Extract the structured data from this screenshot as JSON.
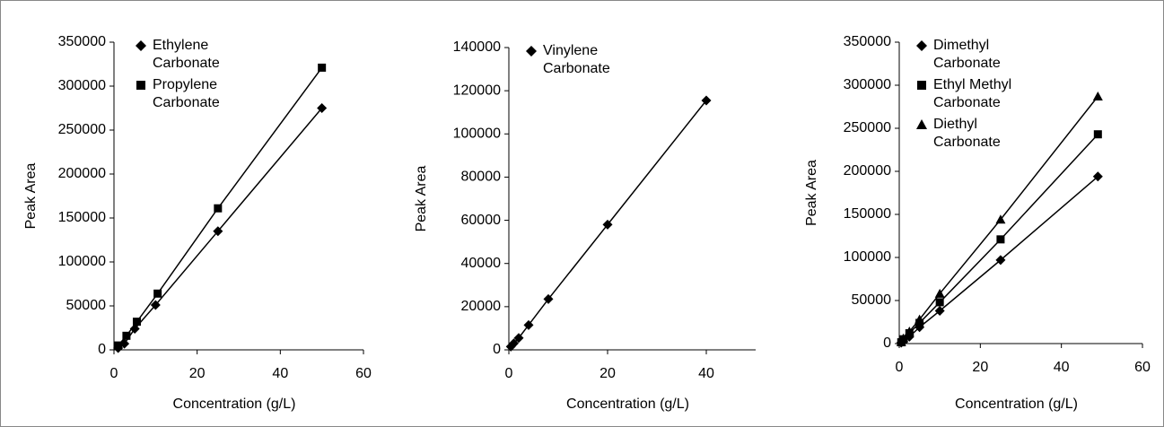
{
  "chart_data": [
    {
      "type": "line",
      "x_label": "Concentration (g/L)",
      "y_label": "Peak Area",
      "xlim": [
        0,
        60
      ],
      "xticks": [
        0,
        20,
        40,
        60
      ],
      "ylim": [
        0,
        350000
      ],
      "yticks": [
        0,
        50000,
        100000,
        150000,
        200000,
        250000,
        300000,
        350000
      ],
      "series": [
        {
          "name": "Ethylene Carbonate",
          "color": "#000000",
          "marker": "diamond",
          "x": [
            1,
            2.5,
            5,
            10,
            25,
            50
          ],
          "values": [
            2000,
            7000,
            24000,
            51000,
            135000,
            275000
          ]
        },
        {
          "name": "Propylene Carbonate",
          "color": "#000000",
          "marker": "square",
          "x": [
            1,
            3,
            5.5,
            10.5,
            25,
            50
          ],
          "values": [
            5000,
            16000,
            32000,
            64000,
            161000,
            321000
          ]
        }
      ]
    },
    {
      "type": "line",
      "x_label": "Concentration (g/L)",
      "y_label": "Peak Area",
      "xlim": [
        0,
        50
      ],
      "xticks": [
        0,
        20,
        40
      ],
      "ylim": [
        0,
        140000
      ],
      "yticks": [
        0,
        20000,
        40000,
        60000,
        80000,
        100000,
        120000,
        140000
      ],
      "series": [
        {
          "name": "Vinylene Carbonate",
          "color": "#000000",
          "marker": "diamond",
          "x": [
            0.4,
            1,
            2,
            4,
            8,
            20,
            40
          ],
          "values": [
            1500,
            3000,
            5500,
            11500,
            23500,
            58000,
            115500
          ]
        }
      ]
    },
    {
      "type": "line",
      "x_label": "Concentration (g/L)",
      "y_label": "Peak Area",
      "xlim": [
        0,
        60
      ],
      "xticks": [
        0,
        20,
        40,
        60
      ],
      "ylim": [
        0,
        350000
      ],
      "yticks": [
        0,
        50000,
        100000,
        150000,
        200000,
        250000,
        300000,
        350000
      ],
      "series": [
        {
          "name": "Dimethyl Carbonate",
          "color": "#000000",
          "marker": "diamond",
          "x": [
            0.5,
            1,
            2.5,
            5,
            10,
            25,
            49
          ],
          "values": [
            1000,
            3000,
            8000,
            19000,
            38000,
            97000,
            194000
          ]
        },
        {
          "name": "Ethyl Methyl Carbonate",
          "color": "#000000",
          "marker": "square",
          "x": [
            0.5,
            1,
            2.5,
            5,
            10,
            25,
            49
          ],
          "values": [
            1500,
            5000,
            12000,
            24000,
            48000,
            121000,
            243000
          ]
        },
        {
          "name": "Diethyl Carbonate",
          "color": "#000000",
          "marker": "triangle",
          "x": [
            0.5,
            1,
            2.5,
            5,
            10,
            25,
            49
          ],
          "values": [
            2000,
            6000,
            14000,
            28000,
            58000,
            144000,
            287000
          ]
        }
      ]
    }
  ]
}
